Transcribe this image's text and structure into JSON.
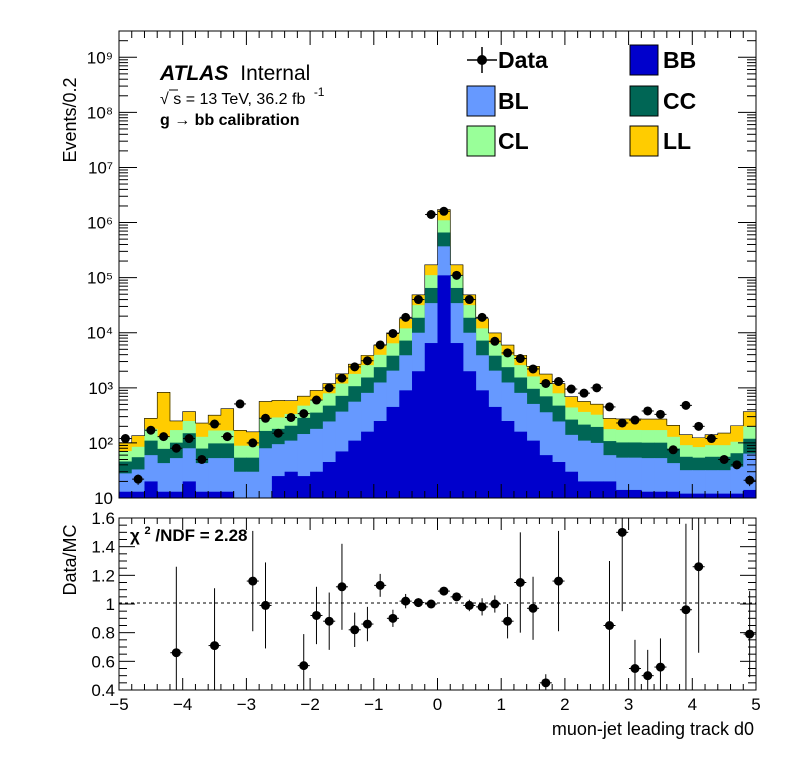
{
  "chart_data": [
    {
      "type": "histogram",
      "panel": "main",
      "ylabel": "Events/0.2",
      "yscale": "log",
      "ylim": [
        10,
        3000000000
      ],
      "xlim": [
        -5,
        5
      ],
      "bin_edges": [
        -5.0,
        -4.8,
        -4.6,
        -4.4,
        -4.2,
        -4.0,
        -3.8,
        -3.6,
        -3.4,
        -3.2,
        -3.0,
        -2.8,
        -2.6,
        -2.4,
        -2.2,
        -2.0,
        -1.8,
        -1.6,
        -1.4,
        -1.2,
        -1.0,
        -0.8,
        -0.6,
        -0.4,
        -0.2,
        0.0,
        0.2,
        0.4,
        0.6,
        0.8,
        1.0,
        1.2,
        1.4,
        1.6,
        1.8,
        2.0,
        2.2,
        2.4,
        2.6,
        2.8,
        3.0,
        3.2,
        3.4,
        3.6,
        3.8,
        4.0,
        4.2,
        4.4,
        4.6,
        4.8,
        5.0
      ],
      "y_ticks": [
        {
          "value": 10,
          "label": "10"
        },
        {
          "value": 100,
          "label": "10²"
        },
        {
          "value": 1000,
          "label": "10³"
        },
        {
          "value": 10000,
          "label": "10⁴"
        },
        {
          "value": 100000,
          "label": "10⁵"
        },
        {
          "value": 1000000,
          "label": "10⁶"
        },
        {
          "value": 10000000,
          "label": "10⁷"
        },
        {
          "value": 100000000,
          "label": "10⁸"
        },
        {
          "value": 1000000000,
          "label": "10⁹"
        }
      ],
      "stack_order_bottom_to_top": [
        "BB",
        "BL",
        "CC",
        "CL",
        "LL"
      ],
      "series": [
        {
          "name": "BB",
          "color": "#0000cc",
          "values": [
            13,
            13,
            20,
            13,
            13,
            20,
            13,
            13,
            13,
            10,
            10,
            10,
            25,
            30,
            25,
            30,
            45,
            70,
            110,
            160,
            250,
            450,
            900,
            2000,
            6500,
            110000,
            6500,
            2000,
            900,
            450,
            250,
            160,
            110,
            60,
            45,
            30,
            20,
            20,
            20,
            14,
            14,
            13,
            13,
            13,
            12,
            12,
            12,
            12,
            12,
            14
          ]
        },
        {
          "name": "BL",
          "color": "#6699ff",
          "values": [
            15,
            20,
            40,
            30,
            40,
            60,
            30,
            40,
            40,
            20,
            20,
            70,
            70,
            80,
            120,
            150,
            200,
            300,
            450,
            650,
            1000,
            1600,
            3000,
            8000,
            28000,
            260000,
            28000,
            8000,
            3000,
            1600,
            1000,
            650,
            400,
            300,
            200,
            110,
            90,
            80,
            40,
            40,
            40,
            40,
            40,
            30,
            20,
            20,
            20,
            20,
            25,
            50
          ]
        },
        {
          "name": "CC",
          "color": "#006655",
          "values": [
            18,
            22,
            50,
            35,
            48,
            70,
            36,
            45,
            45,
            24,
            24,
            85,
            85,
            95,
            140,
            175,
            230,
            345,
            510,
            730,
            1120,
            1780,
            3300,
            8700,
            30500,
            290000,
            30500,
            8700,
            3300,
            1780,
            1120,
            730,
            450,
            340,
            230,
            125,
            105,
            95,
            48,
            48,
            48,
            48,
            48,
            36,
            24,
            22,
            24,
            24,
            28,
            55
          ]
        },
        {
          "name": "CL",
          "color": "#99ff99",
          "values": [
            25,
            30,
            70,
            50,
            70,
            100,
            50,
            70,
            70,
            35,
            35,
            120,
            110,
            130,
            190,
            240,
            320,
            480,
            720,
            1040,
            1600,
            2600,
            4800,
            13000,
            46000,
            440000,
            46000,
            13000,
            4800,
            2600,
            1600,
            1040,
            650,
            480,
            320,
            175,
            150,
            130,
            70,
            70,
            70,
            70,
            70,
            50,
            35,
            30,
            35,
            35,
            40,
            80
          ]
        },
        {
          "name": "LL",
          "color": "#ffcc00",
          "values": [
            30,
            50,
            100,
            700,
            80,
            120,
            100,
            150,
            250,
            80,
            70,
            280,
            300,
            250,
            230,
            300,
            400,
            600,
            900,
            1300,
            2000,
            3500,
            6000,
            17000,
            60000,
            620000,
            60000,
            17000,
            6000,
            3500,
            2000,
            1300,
            850,
            600,
            400,
            250,
            200,
            180,
            100,
            100,
            100,
            100,
            100,
            80,
            50,
            40,
            50,
            60,
            100,
            170
          ]
        }
      ],
      "data": {
        "name": "Data",
        "x": [
          -4.9,
          -4.7,
          -4.5,
          -4.3,
          -4.1,
          -3.9,
          -3.7,
          -3.5,
          -3.3,
          -3.1,
          -2.9,
          -2.7,
          -2.5,
          -2.3,
          -2.1,
          -1.9,
          -1.7,
          -1.5,
          -1.3,
          -1.1,
          -0.9,
          -0.7,
          -0.5,
          -0.3,
          -0.1,
          0.1,
          0.3,
          0.5,
          0.7,
          0.9,
          1.1,
          1.3,
          1.5,
          1.7,
          1.9,
          2.1,
          2.3,
          2.5,
          2.7,
          2.9,
          3.1,
          3.3,
          3.5,
          3.7,
          3.9,
          4.1,
          4.3,
          4.5,
          4.7,
          4.9
        ],
        "y": [
          120,
          22,
          170,
          130,
          80,
          120,
          50,
          220,
          130,
          510,
          100,
          280,
          150,
          290,
          340,
          600,
          1000,
          1500,
          2400,
          3100,
          6000,
          9700,
          19000,
          40000,
          1400000,
          1600000,
          110000,
          40000,
          19000,
          7000,
          4300,
          3400,
          2200,
          1200,
          1300,
          950,
          800,
          1000,
          450,
          230,
          260,
          380,
          330,
          75,
          480,
          200,
          120,
          50,
          40,
          21
        ]
      },
      "legend": {
        "placement": "top-right",
        "entries": [
          {
            "label": "Data",
            "kind": "marker"
          },
          {
            "label": "BB",
            "kind": "fill",
            "color": "#0000cc"
          },
          {
            "label": "BL",
            "kind": "fill",
            "color": "#6699ff"
          },
          {
            "label": "CC",
            "kind": "fill",
            "color": "#006655"
          },
          {
            "label": "CL",
            "kind": "fill",
            "color": "#99ff99"
          },
          {
            "label": "LL",
            "kind": "fill",
            "color": "#ffcc00"
          }
        ]
      },
      "annotations": {
        "atlas": "ATLAS",
        "internal": "Internal",
        "energy_sqrt": "√",
        "energy_s": "s",
        "energy_text": " = 13 TeV, 36.2 fb",
        "energy_exp": "-1",
        "selection": "g  → bb calibration"
      }
    },
    {
      "type": "scatter",
      "panel": "ratio",
      "ylabel": "Data/MC",
      "xlabel": "muon-jet leading track d0",
      "xlim": [
        -5,
        5
      ],
      "ylim": [
        0.4,
        1.6
      ],
      "reference_line": 1,
      "x_ticks": [
        {
          "value": -5,
          "label": "−5"
        },
        {
          "value": -4,
          "label": "−4"
        },
        {
          "value": -3,
          "label": "−3"
        },
        {
          "value": -2,
          "label": "−2"
        },
        {
          "value": -1,
          "label": "−1"
        },
        {
          "value": 0,
          "label": "0"
        },
        {
          "value": 1,
          "label": "1"
        },
        {
          "value": 2,
          "label": "2"
        },
        {
          "value": 3,
          "label": "3"
        },
        {
          "value": 4,
          "label": "4"
        },
        {
          "value": 5,
          "label": "5"
        }
      ],
      "y_ticks": [
        {
          "value": 0.4,
          "label": "0.4"
        },
        {
          "value": 0.6,
          "label": "0.6"
        },
        {
          "value": 0.8,
          "label": "0.8"
        },
        {
          "value": 1.0,
          "label": "1"
        },
        {
          "value": 1.2,
          "label": "1.2"
        },
        {
          "value": 1.4,
          "label": "1.4"
        },
        {
          "value": 1.6,
          "label": "1.6"
        }
      ],
      "chi2_label": "χ",
      "chi2_exp": "2",
      "chi2_text": "/NDF = 2.28",
      "points": [
        {
          "x": -4.1,
          "y": 0.66,
          "err": 0.6
        },
        {
          "x": -3.5,
          "y": 0.71,
          "err": 0.4
        },
        {
          "x": -2.9,
          "y": 1.16,
          "err": 0.35
        },
        {
          "x": -2.7,
          "y": 0.99,
          "err": 0.3
        },
        {
          "x": -2.1,
          "y": 0.57,
          "err": 0.22
        },
        {
          "x": -1.9,
          "y": 0.92,
          "err": 0.2
        },
        {
          "x": -1.7,
          "y": 0.88,
          "err": 0.2
        },
        {
          "x": -1.5,
          "y": 1.12,
          "err": 0.3
        },
        {
          "x": -1.3,
          "y": 0.82,
          "err": 0.12
        },
        {
          "x": -1.1,
          "y": 0.86,
          "err": 0.12
        },
        {
          "x": -0.9,
          "y": 1.13,
          "err": 0.08
        },
        {
          "x": -0.7,
          "y": 0.9,
          "err": 0.06
        },
        {
          "x": -0.5,
          "y": 1.02,
          "err": 0.05
        },
        {
          "x": -0.3,
          "y": 1.01,
          "err": 0.03
        },
        {
          "x": -0.1,
          "y": 1.0,
          "err": 0.01
        },
        {
          "x": 0.1,
          "y": 1.09,
          "err": 0.01
        },
        {
          "x": 0.3,
          "y": 1.05,
          "err": 0.02
        },
        {
          "x": 0.5,
          "y": 0.99,
          "err": 0.04
        },
        {
          "x": 0.7,
          "y": 0.98,
          "err": 0.06
        },
        {
          "x": 0.9,
          "y": 1.0,
          "err": 0.06
        },
        {
          "x": 1.1,
          "y": 0.88,
          "err": 0.12
        },
        {
          "x": 1.3,
          "y": 1.15,
          "err": 0.35
        },
        {
          "x": 1.5,
          "y": 0.97,
          "err": 0.22
        },
        {
          "x": 1.7,
          "y": 0.45,
          "err": 0.06
        },
        {
          "x": 1.9,
          "y": 1.16,
          "err": 0.35
        },
        {
          "x": 2.7,
          "y": 0.85,
          "err": 0.45
        },
        {
          "x": 2.9,
          "y": 1.5,
          "err": 0.55
        },
        {
          "x": 3.1,
          "y": 0.55,
          "err": 0.2
        },
        {
          "x": 3.3,
          "y": 0.5,
          "err": 0.18
        },
        {
          "x": 3.5,
          "y": 0.56,
          "err": 0.2
        },
        {
          "x": 3.9,
          "y": 0.96,
          "err": 0.6
        },
        {
          "x": 4.1,
          "y": 1.26,
          "err": 0.6
        },
        {
          "x": 4.9,
          "y": 0.79,
          "err": 0.3
        }
      ]
    }
  ]
}
